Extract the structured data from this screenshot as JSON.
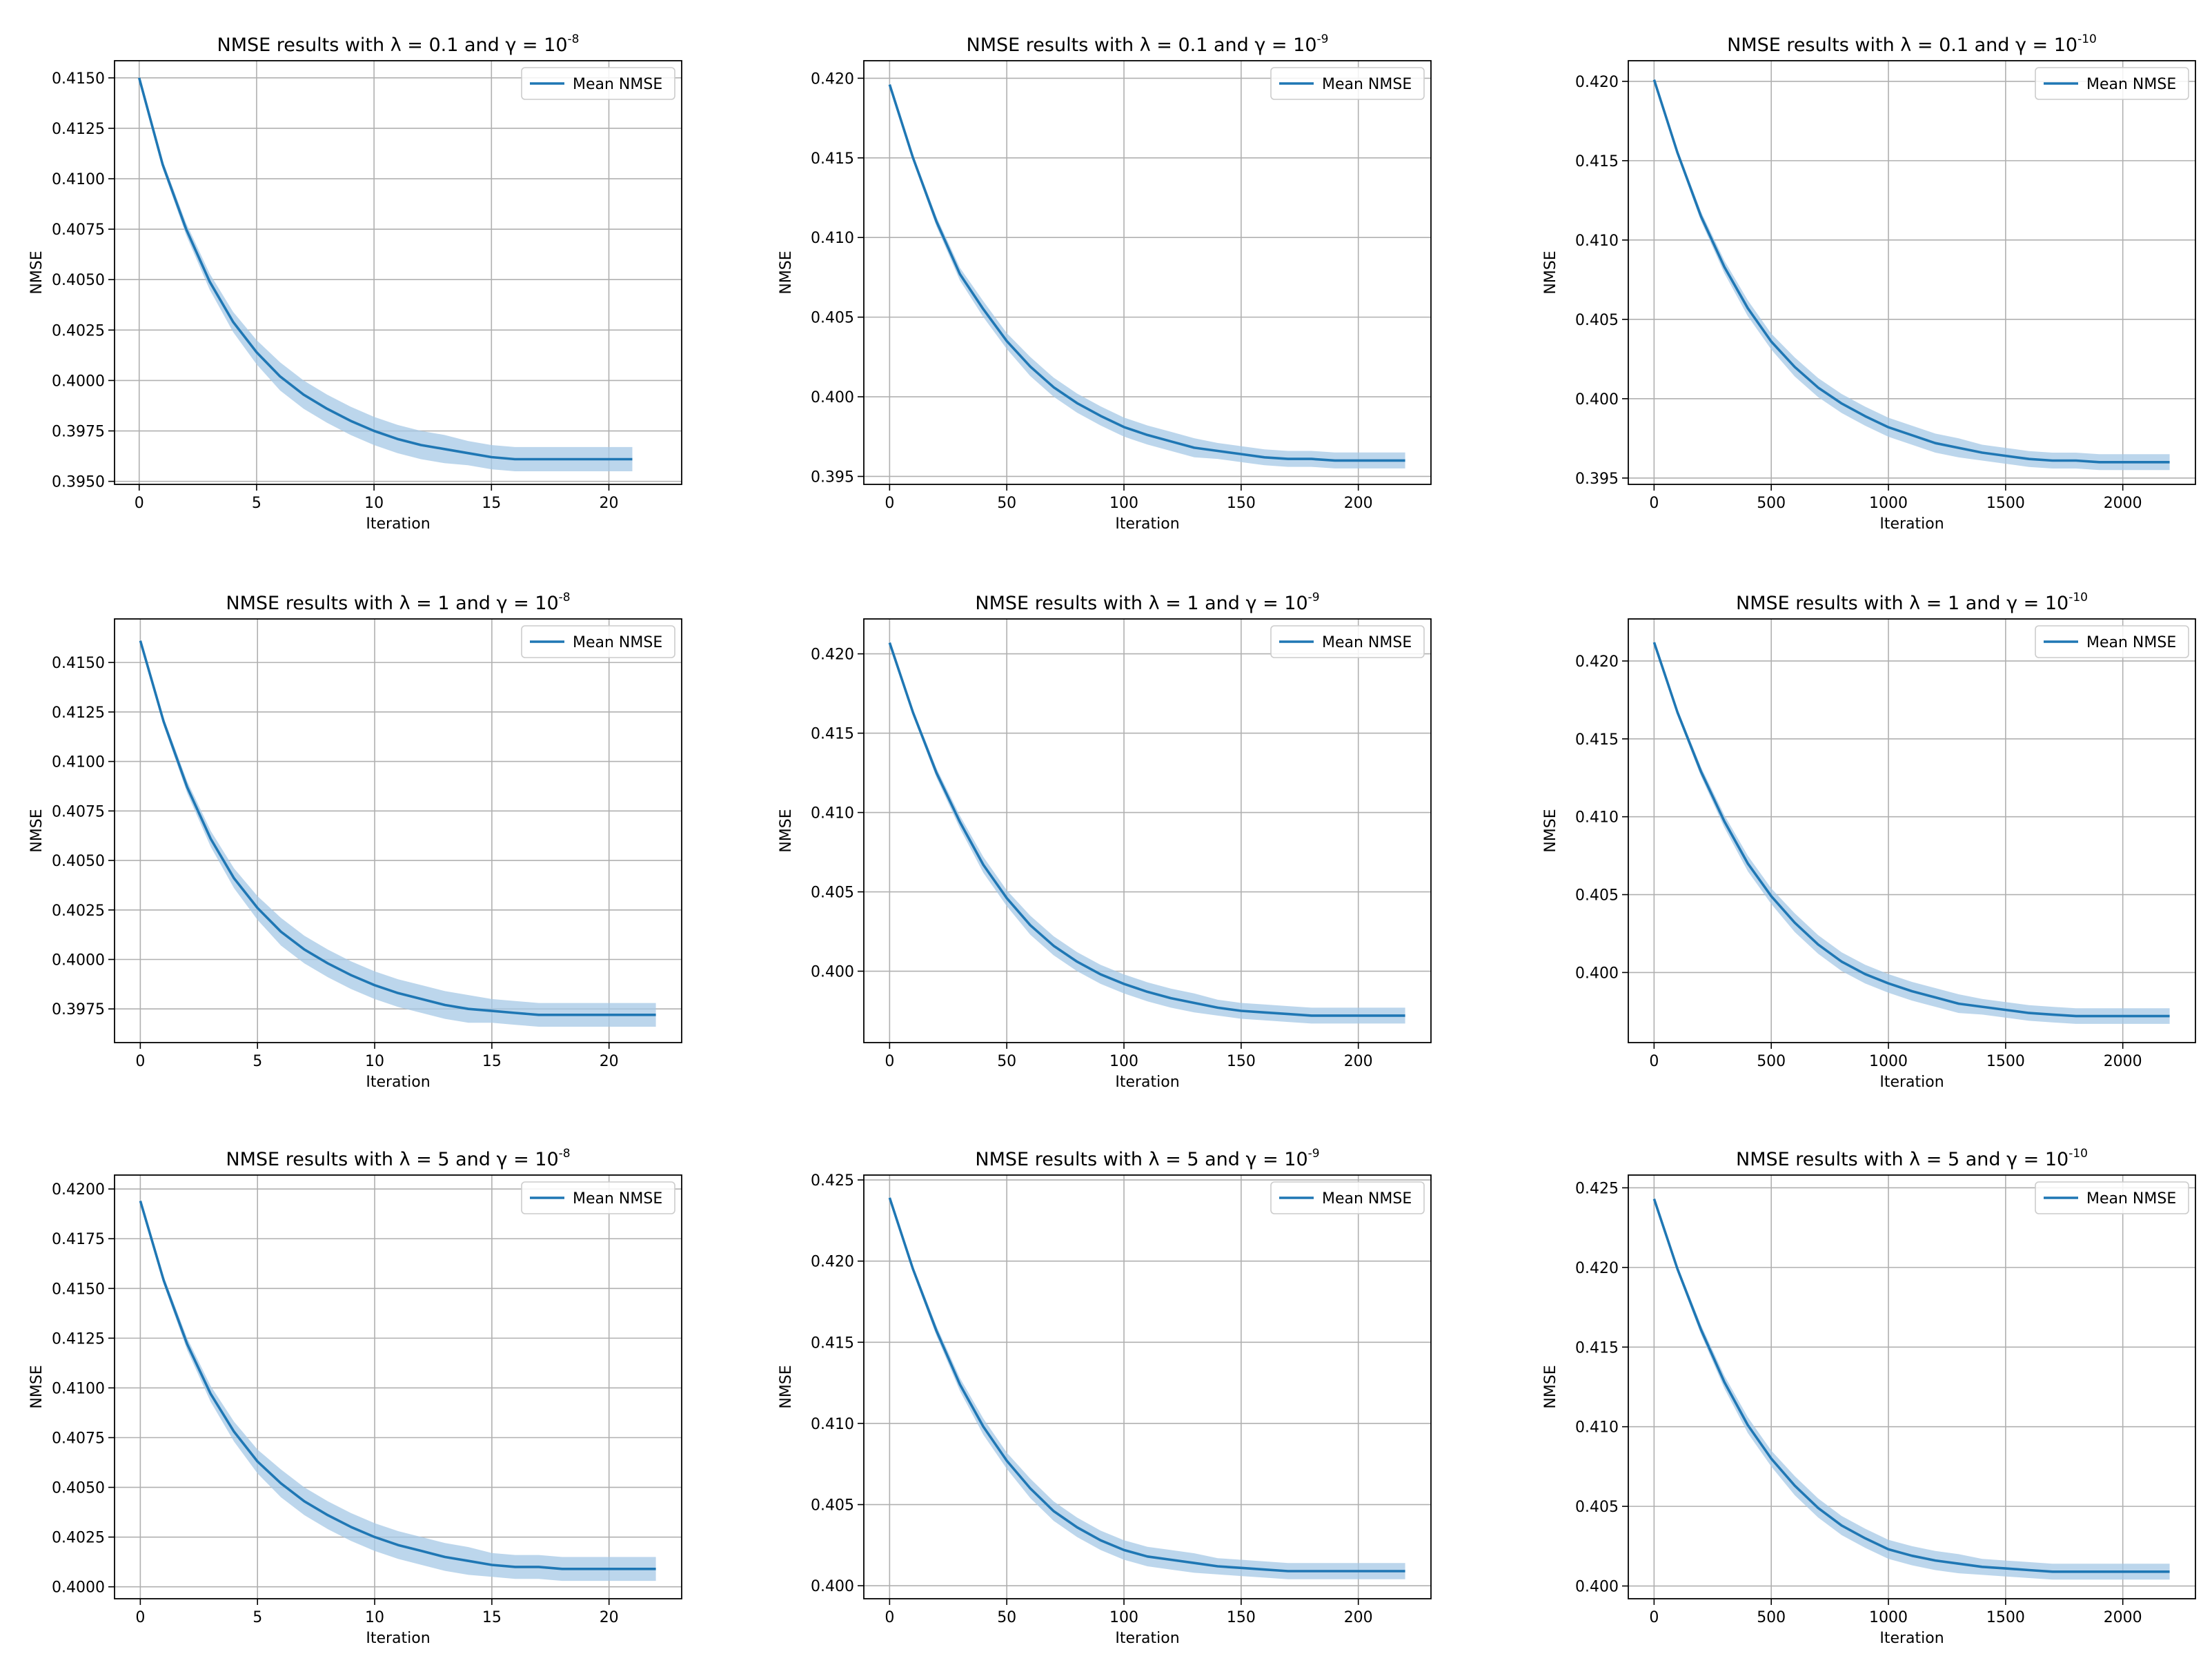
{
  "figure": {
    "description_free": true,
    "line_color": "#1f77b4",
    "band_color": "#a6c8e6"
  },
  "chart_data": [
    {
      "type": "line",
      "title_main": "NMSE results with λ = 0.1 and γ = 10",
      "title_exp": "-8",
      "xlabel": "Iteration",
      "ylabel": "NMSE",
      "legend": "Mean NMSE",
      "legend_position": "upper right",
      "xlim": [
        -1.05,
        23.1
      ],
      "ylim": [
        0.39485,
        0.41585
      ],
      "xticks": [
        0,
        5,
        10,
        15,
        20
      ],
      "yticks": [
        "0.3950",
        "0.3975",
        "0.4000",
        "0.4025",
        "0.4050",
        "0.4075",
        "0.4100",
        "0.4125",
        "0.4150"
      ],
      "series": [
        {
          "name": "Mean NMSE",
          "x": [
            0,
            1,
            2,
            3,
            4,
            5,
            6,
            7,
            8,
            9,
            10,
            11,
            12,
            13,
            14,
            15,
            16,
            17,
            18,
            19,
            20,
            21
          ],
          "y": [
            0.415,
            0.4107,
            0.4075,
            0.4049,
            0.4029,
            0.4014,
            0.4002,
            0.3993,
            0.3986,
            0.398,
            0.3975,
            0.3971,
            0.3968,
            0.3966,
            0.3964,
            0.3962,
            0.3961,
            0.3961,
            0.3961,
            0.3961,
            0.3961,
            0.3961
          ],
          "band": [
            0.0001,
            0.0002,
            0.0003,
            0.0004,
            0.0005,
            0.0006,
            0.0007,
            0.0007,
            0.0007,
            0.0007,
            0.0007,
            0.0007,
            0.0007,
            0.0007,
            0.0006,
            0.0006,
            0.0006,
            0.0006,
            0.0006,
            0.0006,
            0.0006,
            0.0006
          ]
        }
      ]
    },
    {
      "type": "line",
      "title_main": "NMSE results with λ = 0.1 and γ = 10",
      "title_exp": "-9",
      "xlabel": "Iteration",
      "ylabel": "NMSE",
      "legend": "Mean NMSE",
      "legend_position": "upper right",
      "xlim": [
        -11,
        231
      ],
      "ylim": [
        0.3945,
        0.4211
      ],
      "xticks": [
        0,
        50,
        100,
        150,
        200
      ],
      "yticks": [
        "0.395",
        "0.400",
        "0.405",
        "0.410",
        "0.415",
        "0.420"
      ],
      "series": [
        {
          "name": "Mean NMSE",
          "x": [
            0,
            10,
            20,
            30,
            40,
            50,
            60,
            70,
            80,
            90,
            100,
            110,
            120,
            130,
            140,
            150,
            160,
            170,
            180,
            190,
            200,
            210,
            220
          ],
          "y": [
            0.4196,
            0.415,
            0.411,
            0.4077,
            0.4055,
            0.4035,
            0.4019,
            0.4006,
            0.3996,
            0.3988,
            0.3981,
            0.3976,
            0.3972,
            0.3968,
            0.3966,
            0.3964,
            0.3962,
            0.3961,
            0.3961,
            0.396,
            0.396,
            0.396,
            0.396
          ],
          "band": [
            0.0001,
            0.0002,
            0.0003,
            0.0004,
            0.0005,
            0.0005,
            0.0006,
            0.0006,
            0.0006,
            0.0006,
            0.0006,
            0.0006,
            0.0006,
            0.0006,
            0.0005,
            0.0005,
            0.0005,
            0.0005,
            0.0005,
            0.0005,
            0.0005,
            0.0005,
            0.0005
          ]
        }
      ]
    },
    {
      "type": "line",
      "title_main": "NMSE results with λ = 0.1 and γ = 10",
      "title_exp": "-10",
      "xlabel": "Iteration",
      "ylabel": "NMSE",
      "legend": "Mean NMSE",
      "legend_position": "upper right",
      "xlim": [
        -110,
        2310
      ],
      "ylim": [
        0.3946,
        0.4213
      ],
      "xticks": [
        0,
        500,
        1000,
        1500,
        2000
      ],
      "yticks": [
        "0.395",
        "0.400",
        "0.405",
        "0.410",
        "0.415",
        "0.420"
      ],
      "series": [
        {
          "name": "Mean NMSE",
          "x": [
            0,
            100,
            200,
            300,
            400,
            500,
            600,
            700,
            800,
            900,
            1000,
            1100,
            1200,
            1300,
            1400,
            1500,
            1600,
            1700,
            1800,
            1900,
            2000,
            2100,
            2200
          ],
          "y": [
            0.4201,
            0.4155,
            0.4115,
            0.4083,
            0.4057,
            0.4036,
            0.402,
            0.4007,
            0.3997,
            0.3989,
            0.3982,
            0.3977,
            0.3972,
            0.3969,
            0.3966,
            0.3964,
            0.3962,
            0.3961,
            0.3961,
            0.396,
            0.396,
            0.396,
            0.396
          ],
          "band": [
            0.0001,
            0.0002,
            0.0003,
            0.0004,
            0.0005,
            0.0005,
            0.0006,
            0.0006,
            0.0006,
            0.0006,
            0.0006,
            0.0006,
            0.0006,
            0.0006,
            0.0005,
            0.0005,
            0.0005,
            0.0005,
            0.0005,
            0.0005,
            0.0005,
            0.0005,
            0.0005
          ]
        }
      ]
    },
    {
      "type": "line",
      "title_main": "NMSE results with λ = 1 and γ = 10",
      "title_exp": "-8",
      "xlabel": "Iteration",
      "ylabel": "NMSE",
      "legend": "Mean NMSE",
      "legend_position": "upper right",
      "xlim": [
        -1.1,
        23.1
      ],
      "ylim": [
        0.3958,
        0.4172
      ],
      "xticks": [
        0,
        5,
        10,
        15,
        20
      ],
      "yticks": [
        "0.3975",
        "0.4000",
        "0.4025",
        "0.4050",
        "0.4075",
        "0.4100",
        "0.4125",
        "0.4150"
      ],
      "series": [
        {
          "name": "Mean NMSE",
          "x": [
            0,
            1,
            2,
            3,
            4,
            5,
            6,
            7,
            8,
            9,
            10,
            11,
            12,
            13,
            14,
            15,
            16,
            17,
            18,
            19,
            20,
            21,
            22
          ],
          "y": [
            0.4161,
            0.412,
            0.4087,
            0.4061,
            0.4041,
            0.4026,
            0.4014,
            0.4005,
            0.3998,
            0.3992,
            0.3987,
            0.3983,
            0.398,
            0.3977,
            0.3975,
            0.3974,
            0.3973,
            0.3972,
            0.3972,
            0.3972,
            0.3972,
            0.3972,
            0.3972
          ],
          "band": [
            0.0001,
            0.0002,
            0.0003,
            0.0004,
            0.0005,
            0.0006,
            0.0007,
            0.0007,
            0.0007,
            0.0007,
            0.0007,
            0.0007,
            0.0007,
            0.0007,
            0.0007,
            0.0006,
            0.0006,
            0.0006,
            0.0006,
            0.0006,
            0.0006,
            0.0006,
            0.0006
          ]
        }
      ]
    },
    {
      "type": "line",
      "title_main": "NMSE results with λ = 1 and γ = 10",
      "title_exp": "-9",
      "xlabel": "Iteration",
      "ylabel": "NMSE",
      "legend": "Mean NMSE",
      "legend_position": "upper right",
      "xlim": [
        -11,
        231
      ],
      "ylim": [
        0.3955,
        0.4222
      ],
      "xticks": [
        0,
        50,
        100,
        150,
        200
      ],
      "yticks": [
        "0.400",
        "0.405",
        "0.410",
        "0.415",
        "0.420"
      ],
      "series": [
        {
          "name": "Mean NMSE",
          "x": [
            0,
            10,
            20,
            30,
            40,
            50,
            60,
            70,
            80,
            90,
            100,
            110,
            120,
            130,
            140,
            150,
            160,
            170,
            180,
            190,
            200,
            210,
            220
          ],
          "y": [
            0.4207,
            0.4163,
            0.4125,
            0.4094,
            0.4067,
            0.4046,
            0.4029,
            0.4016,
            0.4006,
            0.3998,
            0.3992,
            0.3987,
            0.3983,
            0.398,
            0.3977,
            0.3975,
            0.3974,
            0.3973,
            0.3972,
            0.3972,
            0.3972,
            0.3972,
            0.3972
          ],
          "band": [
            0.0001,
            0.0002,
            0.0003,
            0.0004,
            0.0005,
            0.0005,
            0.0006,
            0.0006,
            0.0006,
            0.0006,
            0.0006,
            0.0006,
            0.0006,
            0.0006,
            0.0005,
            0.0005,
            0.0005,
            0.0005,
            0.0005,
            0.0005,
            0.0005,
            0.0005,
            0.0005
          ]
        }
      ]
    },
    {
      "type": "line",
      "title_main": "NMSE results with λ = 1 and γ = 10",
      "title_exp": "-10",
      "xlabel": "Iteration",
      "ylabel": "NMSE",
      "legend": "Mean NMSE",
      "legend_position": "upper right",
      "xlim": [
        -110,
        2310
      ],
      "ylim": [
        0.3955,
        0.4227
      ],
      "xticks": [
        0,
        500,
        1000,
        1500,
        2000
      ],
      "yticks": [
        "0.400",
        "0.405",
        "0.410",
        "0.415",
        "0.420"
      ],
      "series": [
        {
          "name": "Mean NMSE",
          "x": [
            0,
            100,
            200,
            300,
            400,
            500,
            600,
            700,
            800,
            900,
            1000,
            1100,
            1200,
            1300,
            1400,
            1500,
            1600,
            1700,
            1800,
            1900,
            2000,
            2100,
            2200
          ],
          "y": [
            0.4212,
            0.4167,
            0.4129,
            0.4097,
            0.407,
            0.4049,
            0.4032,
            0.4018,
            0.4007,
            0.3999,
            0.3993,
            0.3988,
            0.3984,
            0.398,
            0.3978,
            0.3976,
            0.3974,
            0.3973,
            0.3972,
            0.3972,
            0.3972,
            0.3972,
            0.3972
          ],
          "band": [
            0.0001,
            0.0002,
            0.0003,
            0.0004,
            0.0005,
            0.0005,
            0.0006,
            0.0006,
            0.0006,
            0.0006,
            0.0006,
            0.0006,
            0.0006,
            0.0006,
            0.0005,
            0.0005,
            0.0005,
            0.0005,
            0.0005,
            0.0005,
            0.0005,
            0.0005,
            0.0005
          ]
        }
      ]
    },
    {
      "type": "line",
      "title_main": "NMSE results with λ = 5 and γ = 10",
      "title_exp": "-8",
      "xlabel": "Iteration",
      "ylabel": "NMSE",
      "legend": "Mean NMSE",
      "legend_position": "upper right",
      "xlim": [
        -1.1,
        23.1
      ],
      "ylim": [
        0.3994,
        0.4207
      ],
      "xticks": [
        0,
        5,
        10,
        15,
        20
      ],
      "yticks": [
        "0.4000",
        "0.4025",
        "0.4050",
        "0.4075",
        "0.4100",
        "0.4125",
        "0.4150",
        "0.4175",
        "0.4200"
      ],
      "series": [
        {
          "name": "Mean NMSE",
          "x": [
            0,
            1,
            2,
            3,
            4,
            5,
            6,
            7,
            8,
            9,
            10,
            11,
            12,
            13,
            14,
            15,
            16,
            17,
            18,
            19,
            20,
            21,
            22
          ],
          "y": [
            0.4194,
            0.4154,
            0.4122,
            0.4097,
            0.4078,
            0.4063,
            0.4052,
            0.4043,
            0.4036,
            0.403,
            0.4025,
            0.4021,
            0.4018,
            0.4015,
            0.4013,
            0.4011,
            0.401,
            0.401,
            0.4009,
            0.4009,
            0.4009,
            0.4009,
            0.4009
          ],
          "band": [
            0.0001,
            0.0002,
            0.0003,
            0.0004,
            0.0005,
            0.0006,
            0.0007,
            0.0007,
            0.0007,
            0.0007,
            0.0007,
            0.0007,
            0.0007,
            0.0007,
            0.0007,
            0.0006,
            0.0006,
            0.0006,
            0.0006,
            0.0006,
            0.0006,
            0.0006,
            0.0006
          ]
        }
      ]
    },
    {
      "type": "line",
      "title_main": "NMSE results with λ = 5 and γ = 10",
      "title_exp": "-9",
      "xlabel": "Iteration",
      "ylabel": "NMSE",
      "legend": "Mean NMSE",
      "legend_position": "upper right",
      "xlim": [
        -11,
        231
      ],
      "ylim": [
        0.3992,
        0.4253
      ],
      "xticks": [
        0,
        50,
        100,
        150,
        200
      ],
      "yticks": [
        "0.400",
        "0.405",
        "0.410",
        "0.415",
        "0.420",
        "0.425"
      ],
      "series": [
        {
          "name": "Mean NMSE",
          "x": [
            0,
            10,
            20,
            30,
            40,
            50,
            60,
            70,
            80,
            90,
            100,
            110,
            120,
            130,
            140,
            150,
            160,
            170,
            180,
            190,
            200,
            210,
            220
          ],
          "y": [
            0.4239,
            0.4195,
            0.4157,
            0.4124,
            0.4098,
            0.4077,
            0.406,
            0.4046,
            0.4036,
            0.4028,
            0.4022,
            0.4018,
            0.4016,
            0.4014,
            0.4012,
            0.4011,
            0.401,
            0.4009,
            0.4009,
            0.4009,
            0.4009,
            0.4009,
            0.4009
          ],
          "band": [
            0.0001,
            0.0002,
            0.0003,
            0.0004,
            0.0005,
            0.0005,
            0.0006,
            0.0006,
            0.0006,
            0.0006,
            0.0006,
            0.0006,
            0.0006,
            0.0006,
            0.0005,
            0.0005,
            0.0005,
            0.0005,
            0.0005,
            0.0005,
            0.0005,
            0.0005,
            0.0005
          ]
        }
      ]
    },
    {
      "type": "line",
      "title_main": "NMSE results with λ = 5 and γ = 10",
      "title_exp": "-10",
      "xlabel": "Iteration",
      "ylabel": "NMSE",
      "legend": "Mean NMSE",
      "legend_position": "upper right",
      "xlim": [
        -110,
        2310
      ],
      "ylim": [
        0.3992,
        0.4258
      ],
      "xticks": [
        0,
        500,
        1000,
        1500,
        2000
      ],
      "yticks": [
        "0.400",
        "0.405",
        "0.410",
        "0.415",
        "0.420",
        "0.425"
      ],
      "series": [
        {
          "name": "Mean NMSE",
          "x": [
            0,
            100,
            200,
            300,
            400,
            500,
            600,
            700,
            800,
            900,
            1000,
            1100,
            1200,
            1300,
            1400,
            1500,
            1600,
            1700,
            1800,
            1900,
            2000,
            2100,
            2200
          ],
          "y": [
            0.4243,
            0.4199,
            0.4161,
            0.4128,
            0.4101,
            0.408,
            0.4063,
            0.4049,
            0.4038,
            0.403,
            0.4023,
            0.4019,
            0.4016,
            0.4014,
            0.4012,
            0.4011,
            0.401,
            0.4009,
            0.4009,
            0.4009,
            0.4009,
            0.4009,
            0.4009
          ],
          "band": [
            0.0001,
            0.0002,
            0.0003,
            0.0004,
            0.0005,
            0.0005,
            0.0006,
            0.0006,
            0.0006,
            0.0006,
            0.0006,
            0.0006,
            0.0006,
            0.0006,
            0.0005,
            0.0005,
            0.0005,
            0.0005,
            0.0005,
            0.0005,
            0.0005,
            0.0005,
            0.0005
          ]
        }
      ]
    }
  ]
}
